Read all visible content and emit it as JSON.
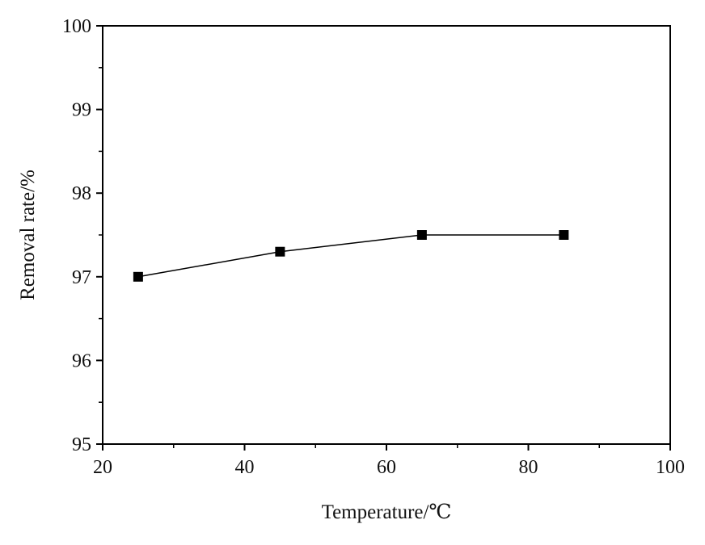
{
  "chart_data": {
    "type": "line",
    "title": "",
    "xlabel": "Temperature/℃",
    "ylabel": "Removal rate/%",
    "xlim": [
      20,
      100
    ],
    "ylim": [
      95,
      100
    ],
    "x_ticks": [
      20,
      40,
      60,
      80,
      100
    ],
    "y_ticks": [
      95,
      96,
      97,
      98,
      99,
      100
    ],
    "x_tick_labels": [
      "20",
      "40",
      "60",
      "80",
      "100"
    ],
    "y_tick_labels": [
      "95",
      "96",
      "97",
      "98",
      "99",
      "100"
    ],
    "grid": false,
    "legend": "none",
    "series": [
      {
        "marker": "square",
        "color": "#000000",
        "x": [
          25,
          45,
          65,
          85
        ],
        "y": [
          97.0,
          97.3,
          97.5,
          97.5
        ]
      }
    ]
  }
}
